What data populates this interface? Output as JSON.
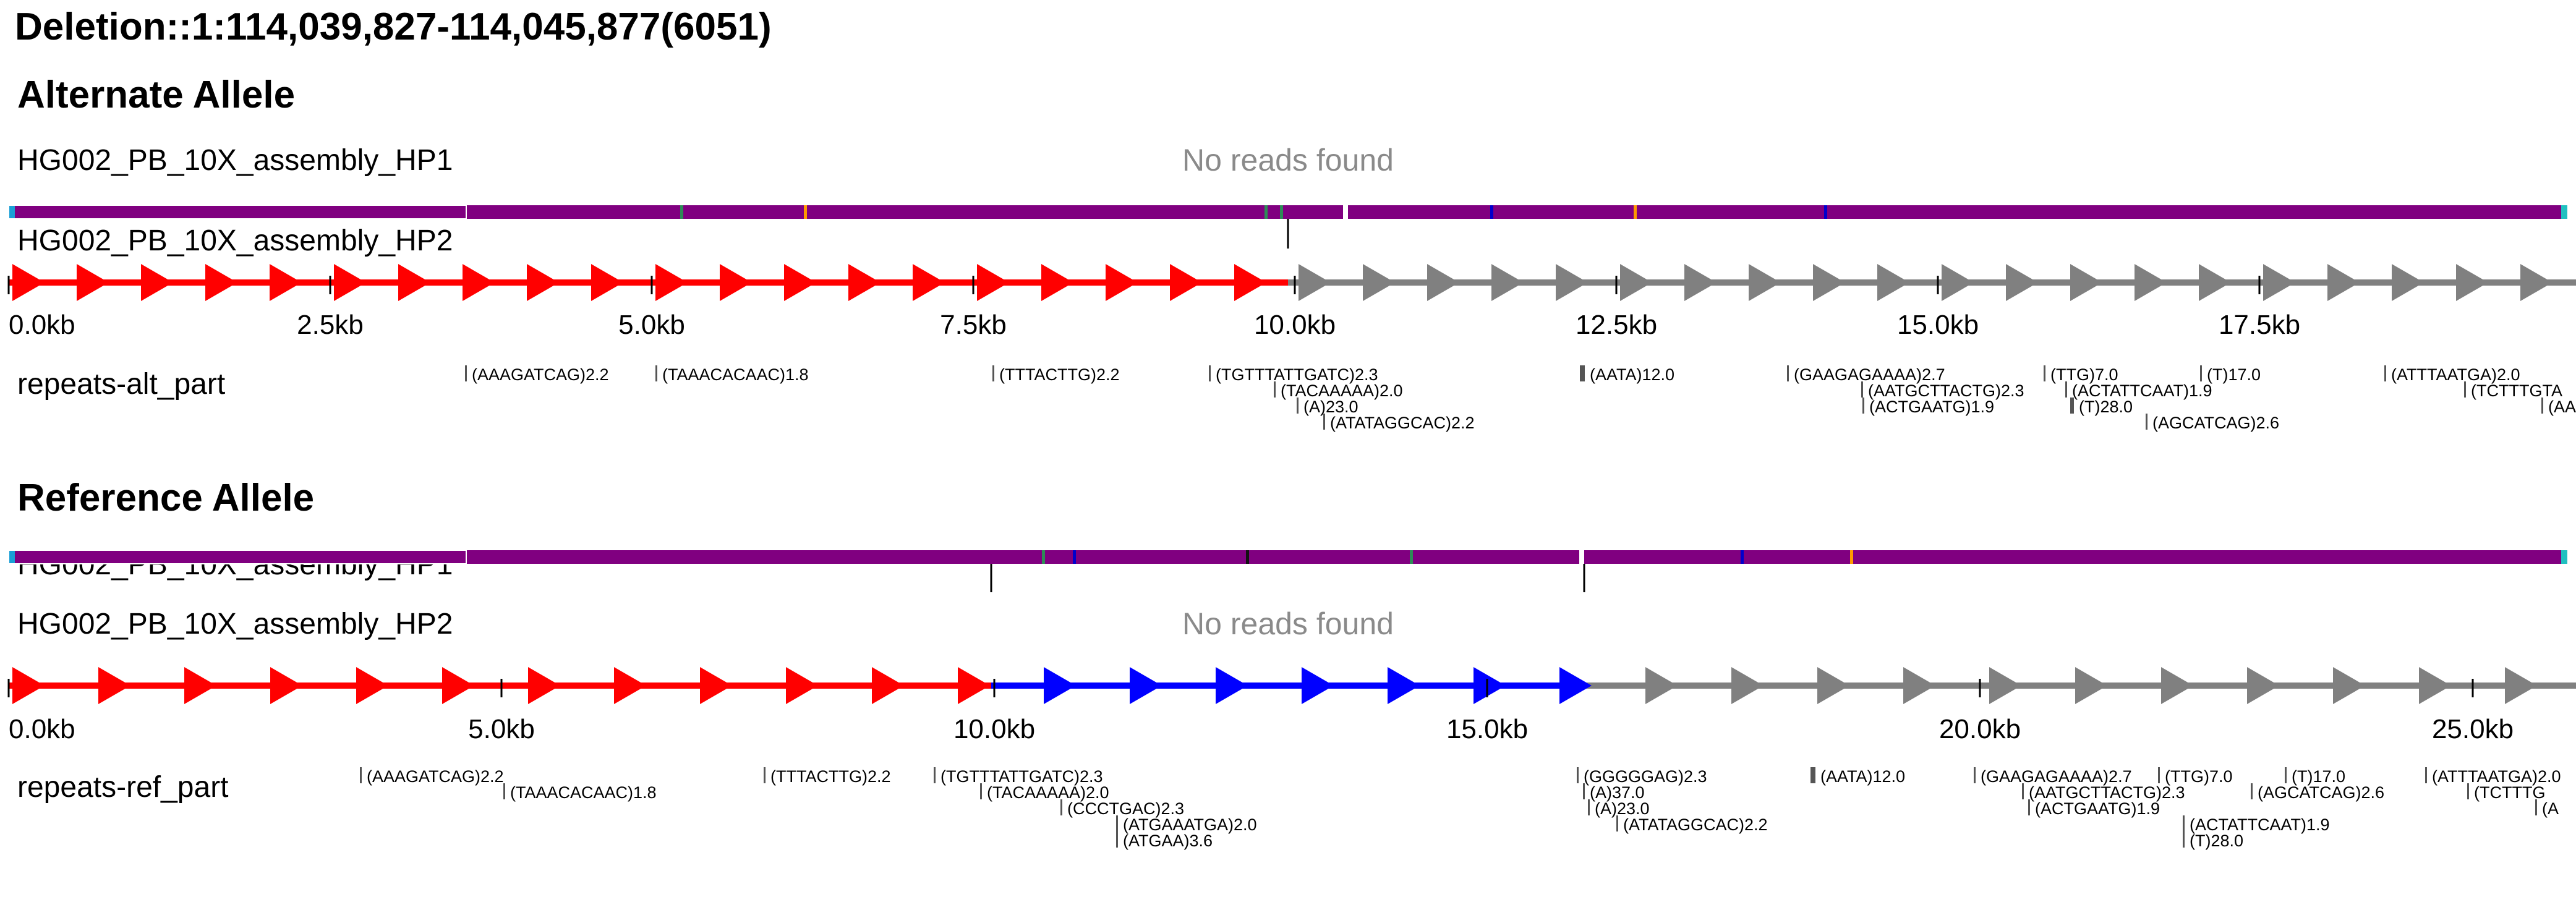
{
  "title": "Deletion::1:114,039,827-114,045,877(6051)",
  "alt": {
    "heading": "Alternate Allele",
    "track1": {
      "label": "HG002_PB_10X_assembly_HP1",
      "status": "No reads found"
    },
    "track2": {
      "label": "HG002_PB_10X_assembly_HP2"
    },
    "axis_ticks": [
      "0.0kb",
      "2.5kb",
      "5.0kb",
      "7.5kb",
      "10.0kb",
      "12.5kb",
      "15.0kb",
      "17.5kb"
    ],
    "repeats_label": "repeats-alt_part",
    "repeats": [
      "(AAAGATCAG)2.2",
      "(TAAACACAAC)1.8",
      "(TTTACTTG)2.2",
      "(TGTTTATTGATC)2.3",
      "(TACAAAAA)2.0",
      "(A)23.0",
      "(ATATAGGCAC)2.2",
      "(AATA)12.0",
      "(GAAGAGAAAA)2.7",
      "(AATGCTTACTG)2.3",
      "(ACTGAATG)1.9",
      "(TTG)7.0",
      "(ACTATTCAAT)1.9",
      "(T)28.0",
      "(T)17.0",
      "(AGCATCAG)2.6",
      "(ATTTAATGA)2.0",
      "(TCTTTGTA",
      "(AA"
    ]
  },
  "ref": {
    "heading": "Reference Allele",
    "track1": {
      "label": "HG002_PB_10X_assembly_HP1"
    },
    "track2": {
      "label": "HG002_PB_10X_assembly_HP2",
      "status": "No reads found"
    },
    "axis_ticks": [
      "0.0kb",
      "5.0kb",
      "10.0kb",
      "15.0kb",
      "20.0kb",
      "25.0kb"
    ],
    "repeats_label": "repeats-ref_part",
    "repeats": [
      "(AAAGATCAG)2.2",
      "(TAAACACAAC)1.8",
      "(TTTACTTG)2.2",
      "(TGTTTATTGATC)2.3",
      "(TACAAAAA)2.0",
      "(CCCTGAC)2.3",
      "(ATGAAATGA)2.0",
      "(ATGAA)3.6",
      "(GGGGGAG)2.3",
      "(A)37.0",
      "(A)23.0",
      "(ATATAGGCAC)2.2",
      "(AATA)12.0",
      "(GAAGAGAAAA)2.7",
      "(AATGCTTACTG)2.3",
      "(ACTGAATG)1.9",
      "(TTG)7.0",
      "(ACTATTCAAT)1.9",
      "(T)28.0",
      "(T)17.0",
      "(AGCATCAG)2.6",
      "(ATTTAATGA)2.0",
      "(TCTTTG",
      "(A"
    ]
  },
  "colors": {
    "read": "#800080",
    "ref_segment": "#ff0000",
    "deleted_segment": "#0000ff",
    "flank_segment": "#808080",
    "no_reads": "#8a8a8a"
  }
}
